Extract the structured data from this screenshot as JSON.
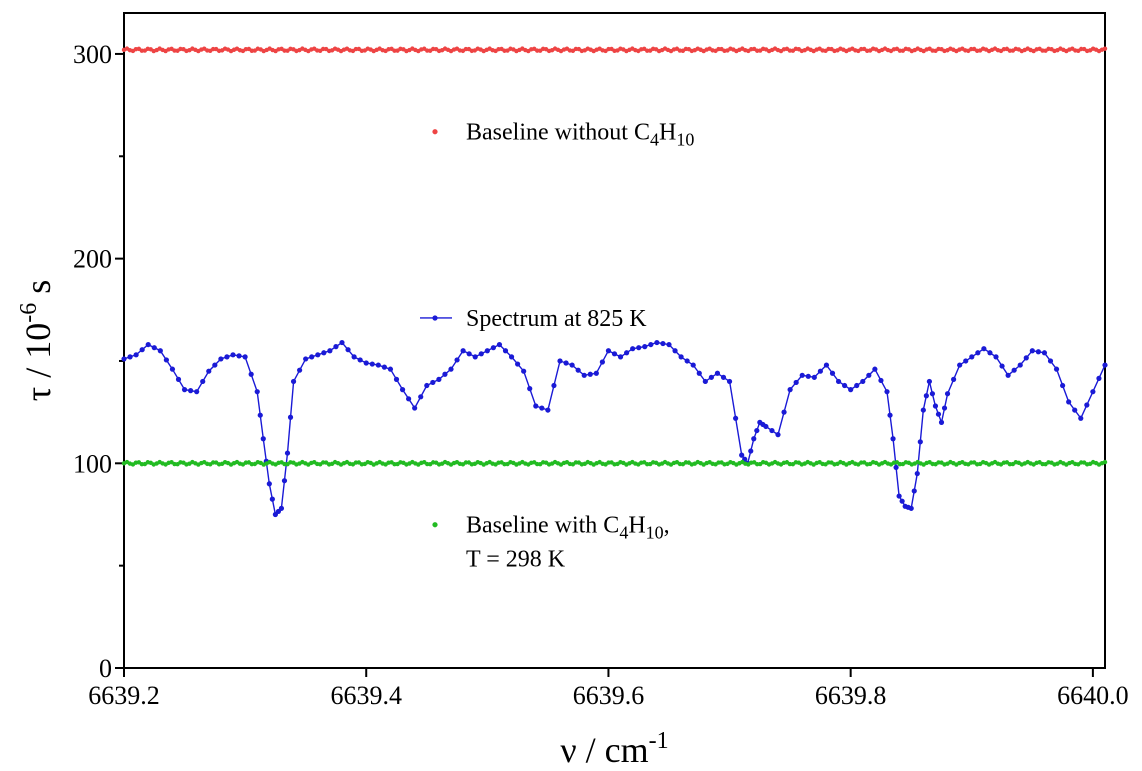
{
  "chart_data": {
    "type": "scatter",
    "title": "",
    "xlabel": {
      "symbol": "ν / cm",
      "superscript": "-1"
    },
    "ylabel": {
      "symbol": "τ / 10",
      "superscript": "-6",
      "suffix": " s"
    },
    "xlim": [
      6639.2,
      6640.01
    ],
    "ylim": [
      0,
      320
    ],
    "xticks": [
      6639.2,
      6639.4,
      6639.6,
      6639.8,
      6640.0
    ],
    "xtick_labels": [
      "6639.2",
      "6639.4",
      "6639.6",
      "6639.8",
      "6640.0"
    ],
    "yticks": [
      0,
      100,
      200,
      300
    ],
    "ytick_labels": [
      "0",
      "100",
      "200",
      "300"
    ],
    "ytick_minor": [
      50,
      150,
      250
    ],
    "grid": false,
    "series": [
      {
        "name": "Baseline without C4H10",
        "legend": {
          "prefix": "Baseline without C",
          "sub1": "4",
          "mid": "H",
          "sub2": "10",
          "suffix": ""
        },
        "color": "#ee4444",
        "style": "markers",
        "x_range": [
          6639.2,
          6640.01
        ],
        "y_constant": 302
      },
      {
        "name": "Spectrum at 825 K",
        "legend": {
          "prefix": "Spectrum at 825 K"
        },
        "color": "#1a1ad6",
        "style": "line-markers",
        "x": [
          6639.2,
          6639.21,
          6639.22,
          6639.23,
          6639.24,
          6639.25,
          6639.26,
          6639.27,
          6639.28,
          6639.29,
          6639.3,
          6639.31,
          6639.315,
          6639.32,
          6639.325,
          6639.33,
          6639.335,
          6639.34,
          6639.35,
          6639.36,
          6639.37,
          6639.38,
          6639.39,
          6639.4,
          6639.41,
          6639.42,
          6639.43,
          6639.44,
          6639.45,
          6639.46,
          6639.47,
          6639.48,
          6639.49,
          6639.5,
          6639.51,
          6639.52,
          6639.53,
          6639.54,
          6639.55,
          6639.56,
          6639.57,
          6639.58,
          6639.59,
          6639.6,
          6639.61,
          6639.62,
          6639.63,
          6639.64,
          6639.65,
          6639.66,
          6639.67,
          6639.68,
          6639.69,
          6639.7,
          6639.71,
          6639.715,
          6639.72,
          6639.725,
          6639.73,
          6639.74,
          6639.75,
          6639.76,
          6639.77,
          6639.78,
          6639.79,
          6639.8,
          6639.81,
          6639.82,
          6639.83,
          6639.835,
          6639.84,
          6639.845,
          6639.85,
          6639.855,
          6639.86,
          6639.865,
          6639.87,
          6639.875,
          6639.88,
          6639.89,
          6639.9,
          6639.91,
          6639.92,
          6639.93,
          6639.94,
          6639.95,
          6639.96,
          6639.97,
          6639.98,
          6639.99,
          6640.0,
          6640.01
        ],
        "y": [
          151,
          153,
          158,
          155,
          146,
          136,
          135,
          145,
          151,
          153,
          152,
          135,
          112,
          90,
          75,
          78,
          105,
          140,
          151,
          153,
          155,
          159,
          152,
          149,
          148,
          146,
          136,
          127,
          138,
          141,
          146,
          155,
          152,
          155,
          158,
          152,
          145,
          128,
          126,
          150,
          148,
          143,
          144,
          155,
          152,
          156,
          157,
          159,
          158,
          152,
          148,
          140,
          144,
          140,
          104,
          100,
          112,
          120,
          118,
          114,
          136,
          143,
          142,
          148,
          140,
          136,
          140,
          146,
          135,
          112,
          84,
          79,
          78,
          95,
          126,
          140,
          128,
          120,
          134,
          148,
          152,
          156,
          152,
          143,
          148,
          155,
          154,
          146,
          130,
          122,
          135,
          148
        ]
      },
      {
        "name": "Baseline with C4H10, T = 298 K",
        "legend": {
          "prefix": "Baseline with C",
          "sub1": "4",
          "mid": "H",
          "sub2": "10",
          "suffix": ",",
          "line2": "T = 298 K"
        },
        "color": "#22bb22",
        "style": "markers",
        "x_range": [
          6639.2,
          6640.01
        ],
        "y_constant": 100
      }
    ]
  }
}
